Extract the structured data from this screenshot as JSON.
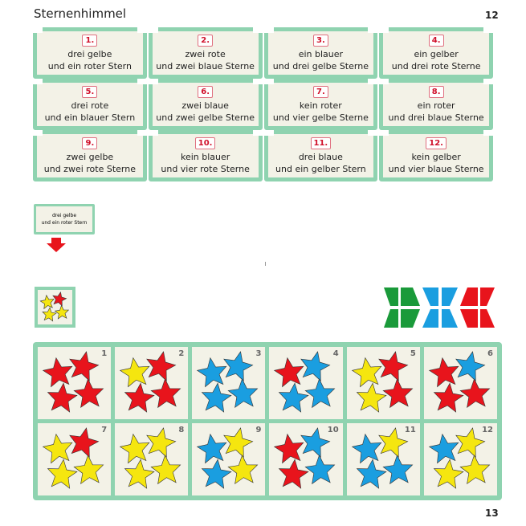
{
  "title": "Sternenhimmel",
  "page_left": "12",
  "page_right": "13",
  "colors": {
    "red": "#e8141c",
    "yellow": "#f5e60f",
    "blue": "#1a9ee0",
    "green": "#1a9a3a",
    "frame": "#8fd3b0"
  },
  "cards": [
    {
      "num": "1.",
      "l1": "drei gelbe",
      "l2": "und ein roter Stern"
    },
    {
      "num": "2.",
      "l1": "zwei rote",
      "l2": "und zwei blaue Sterne"
    },
    {
      "num": "3.",
      "l1": "ein blauer",
      "l2": "und drei gelbe Sterne"
    },
    {
      "num": "4.",
      "l1": "ein gelber",
      "l2": "und drei rote Sterne"
    },
    {
      "num": "5.",
      "l1": "drei rote",
      "l2": "und ein blauer Stern"
    },
    {
      "num": "6.",
      "l1": "zwei blaue",
      "l2": "und zwei gelbe Sterne"
    },
    {
      "num": "7.",
      "l1": "kein roter",
      "l2": "und vier gelbe Sterne"
    },
    {
      "num": "8.",
      "l1": "ein roter",
      "l2": "und drei blaue Sterne"
    },
    {
      "num": "9.",
      "l1": "zwei gelbe",
      "l2": "und zwei rote Sterne"
    },
    {
      "num": "10.",
      "l1": "kein blauer",
      "l2": "und vier rote Sterne"
    },
    {
      "num": "11.",
      "l1": "drei blaue",
      "l2": "und ein gelber Stern"
    },
    {
      "num": "12.",
      "l1": "kein gelber",
      "l2": "und vier blaue Sterne"
    }
  ],
  "example": {
    "l1": "drei gelbe",
    "l2": "und ein roter Stern",
    "stars": [
      "yellow",
      "red",
      "yellow",
      "yellow"
    ]
  },
  "arrow_icon": "arrow-down-icon",
  "tiles": [
    {
      "n": "1",
      "stars": [
        "red",
        "red",
        "red",
        "red"
      ]
    },
    {
      "n": "2",
      "stars": [
        "yellow",
        "red",
        "red",
        "red"
      ]
    },
    {
      "n": "3",
      "stars": [
        "blue",
        "blue",
        "blue",
        "blue"
      ]
    },
    {
      "n": "4",
      "stars": [
        "red",
        "blue",
        "blue",
        "blue"
      ]
    },
    {
      "n": "5",
      "stars": [
        "yellow",
        "red",
        "yellow",
        "red"
      ]
    },
    {
      "n": "6",
      "stars": [
        "red",
        "blue",
        "red",
        "red"
      ]
    },
    {
      "n": "7",
      "stars": [
        "yellow",
        "red",
        "yellow",
        "yellow"
      ]
    },
    {
      "n": "8",
      "stars": [
        "yellow",
        "yellow",
        "yellow",
        "yellow"
      ]
    },
    {
      "n": "9",
      "stars": [
        "blue",
        "yellow",
        "blue",
        "yellow"
      ]
    },
    {
      "n": "10",
      "stars": [
        "red",
        "blue",
        "red",
        "blue"
      ]
    },
    {
      "n": "11",
      "stars": [
        "blue",
        "yellow",
        "blue",
        "blue"
      ]
    },
    {
      "n": "12",
      "stars": [
        "blue",
        "yellow",
        "yellow",
        "yellow"
      ]
    }
  ]
}
